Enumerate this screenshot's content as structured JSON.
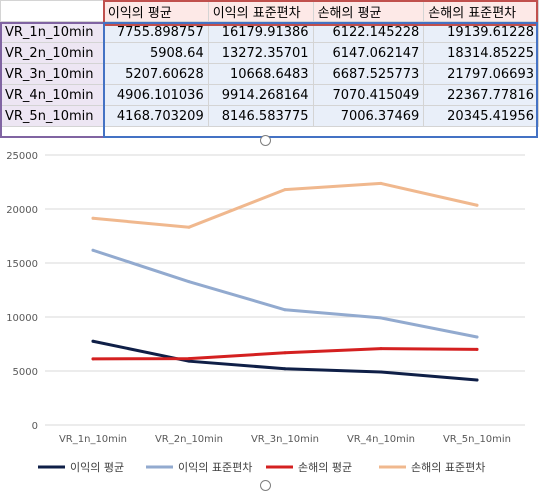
{
  "sheet": {
    "headers": [
      "",
      "이익의 평균",
      "이익의 표준편차",
      "손해의 평균",
      "손해의 표준편차"
    ],
    "rows": [
      {
        "label": "VR_1n_10min",
        "values": [
          "7755.898757",
          "16179.91386",
          "6122.145228",
          "19139.61228"
        ]
      },
      {
        "label": "VR_2n_10min",
        "values": [
          "5908.64",
          "13272.35701",
          "6147.062147",
          "18314.85225"
        ]
      },
      {
        "label": "VR_3n_10min",
        "values": [
          "5207.60628",
          "10668.6483",
          "6687.525773",
          "21797.06693"
        ]
      },
      {
        "label": "VR_4n_10min",
        "values": [
          "4906.101036",
          "9914.268164",
          "7070.415049",
          "22367.77816"
        ]
      },
      {
        "label": "VR_5n_10min",
        "values": [
          "4168.703209",
          "8146.583775",
          "7006.37469",
          "20345.41956"
        ]
      }
    ]
  },
  "chart_data": {
    "type": "line",
    "categories": [
      "VR_1n_10min",
      "VR_2n_10min",
      "VR_3n_10min",
      "VR_4n_10min",
      "VR_5n_10min"
    ],
    "series": [
      {
        "name": "이익의 평균",
        "color": "#0f1f47",
        "values": [
          7755.898757,
          5908.64,
          5207.60628,
          4906.101036,
          4168.703209
        ]
      },
      {
        "name": "이익의 표준편차",
        "color": "#92aacf",
        "values": [
          16179.91386,
          13272.35701,
          10668.6483,
          9914.268164,
          8146.583775
        ]
      },
      {
        "name": "손해의 평균",
        "color": "#d42020",
        "values": [
          6122.145228,
          6147.062147,
          6687.525773,
          7070.415049,
          7006.37469
        ]
      },
      {
        "name": "손해의 표준편차",
        "color": "#f0b88e",
        "values": [
          19139.61228,
          18314.85225,
          21797.06693,
          22367.77816,
          20345.41956
        ]
      }
    ],
    "ylim": [
      0,
      25000
    ],
    "yticks": [
      "0",
      "5000",
      "10000",
      "15000",
      "20000",
      "25000"
    ],
    "grid": true,
    "legend": "bottom",
    "title": "",
    "xlabel": "",
    "ylabel": ""
  }
}
